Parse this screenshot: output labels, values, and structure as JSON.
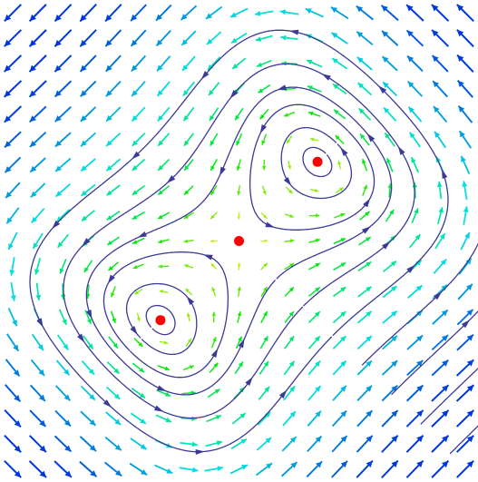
{
  "chart_data": {
    "type": "scatter",
    "x": [
      -0.67,
      0,
      0.67
    ],
    "y": [
      -0.67,
      0,
      0.67
    ],
    "color": "#ff0000",
    "xlim": [
      -2,
      2
    ],
    "ylim": [
      -2,
      2
    ]
  }
}
